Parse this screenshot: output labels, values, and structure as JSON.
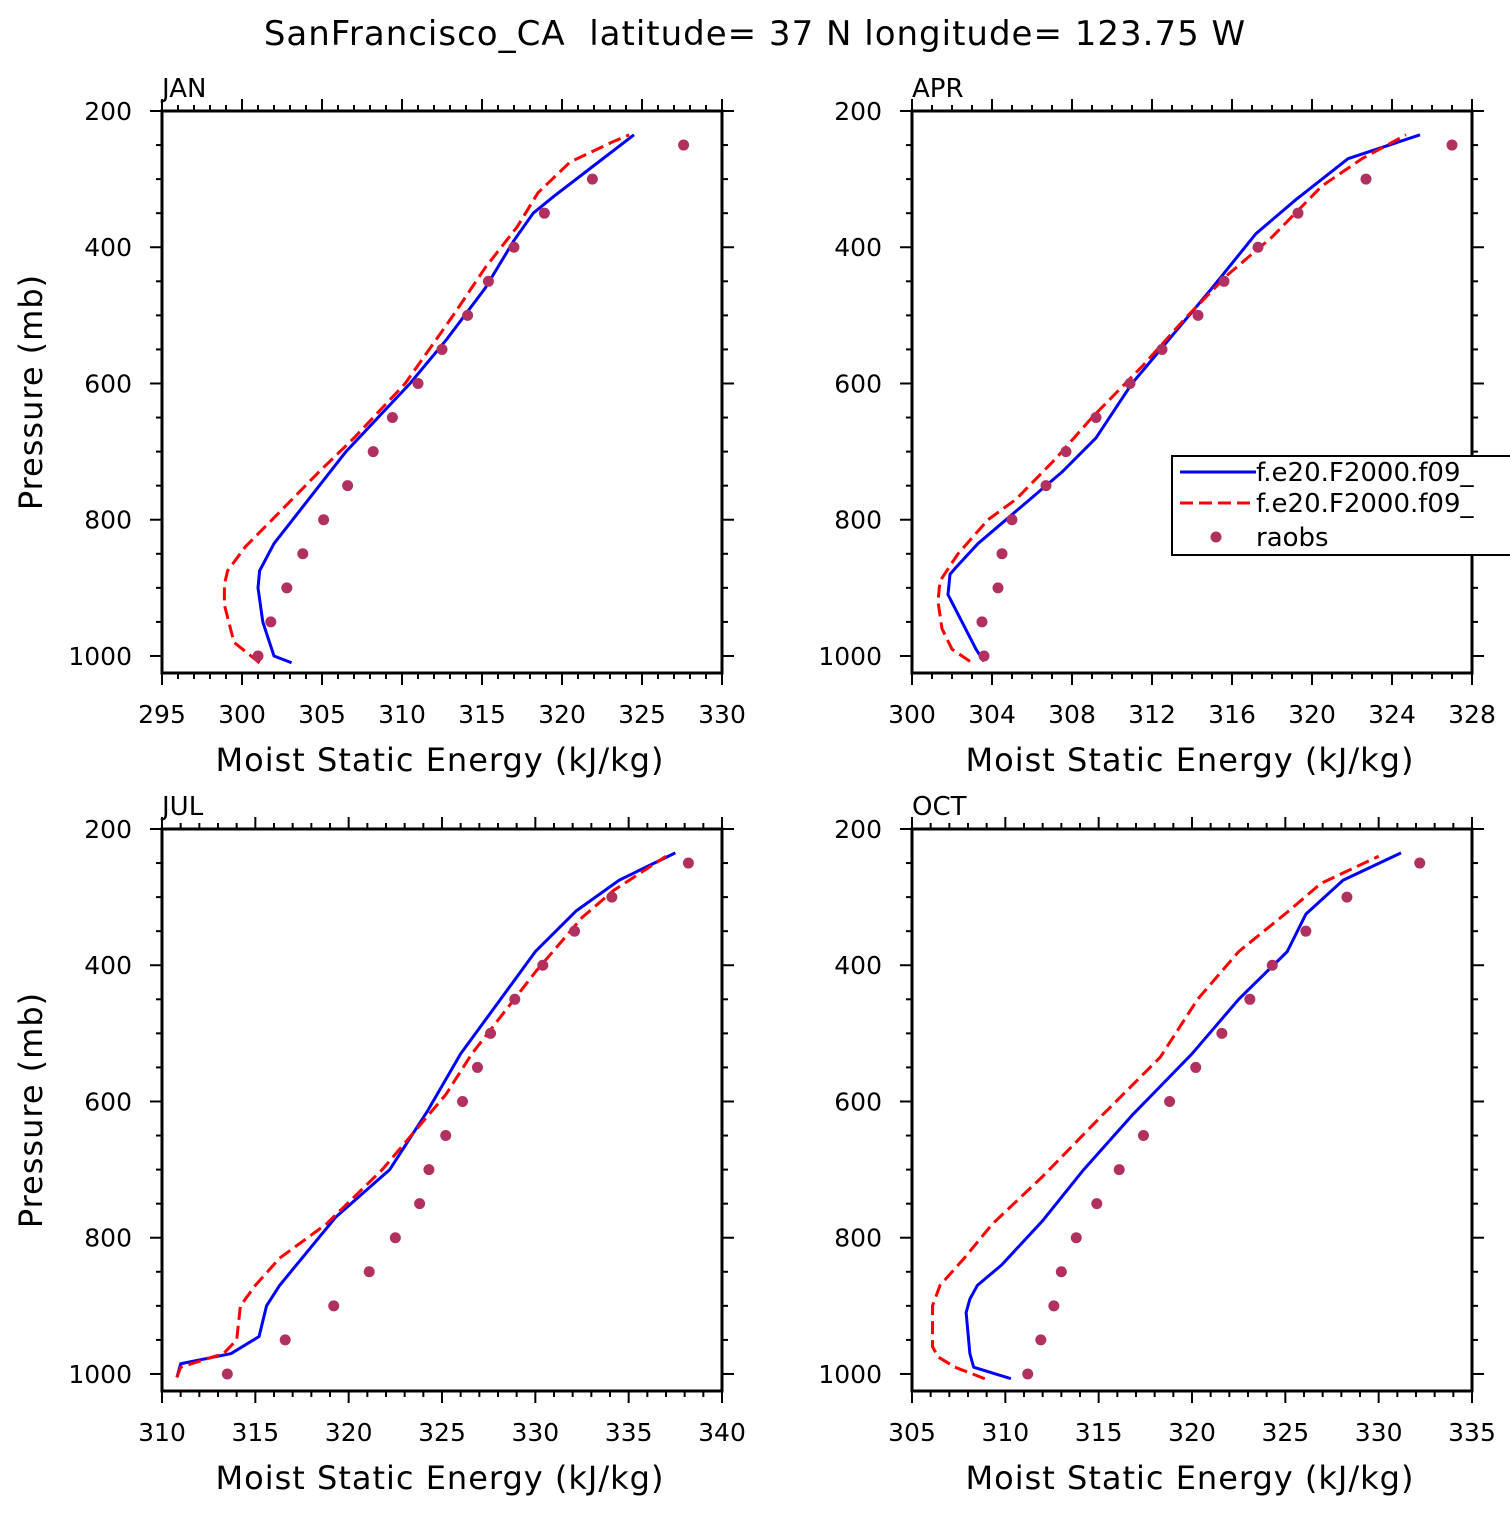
{
  "title": "SanFrancisco_CA  latitude= 37 N longitude= 123.75 W",
  "colors": {
    "blue": "#0000ff",
    "red": "#ff0000",
    "raobs": "#b03060",
    "axis": "#000000"
  },
  "legend": {
    "entries": [
      "f.e20.F2000.f09_",
      "f.e20.F2000.f09_",
      "raobs"
    ]
  },
  "chart_data": [
    {
      "type": "line",
      "panel": "JAN",
      "xlabel": "Moist Static Energy (kJ/kg)",
      "ylabel": "Pressure (mb)",
      "xlim": [
        295,
        330
      ],
      "ylim": [
        1000,
        200
      ],
      "xticks": [
        295,
        300,
        305,
        310,
        315,
        320,
        325,
        330
      ],
      "yticks": [
        200,
        400,
        600,
        800,
        1000
      ],
      "x_minor": 1,
      "y_minor": 50,
      "grid": false,
      "series": [
        {
          "style": "solid",
          "color": "blue",
          "points": [
            [
              303.1,
              1010
            ],
            [
              302,
              1000
            ],
            [
              301.3,
              950
            ],
            [
              301,
              900
            ],
            [
              301.1,
              875
            ],
            [
              302,
              835
            ],
            [
              304,
              775
            ],
            [
              306.5,
              700
            ],
            [
              308.5,
              650
            ],
            [
              310.5,
              600
            ],
            [
              312.8,
              535
            ],
            [
              315.2,
              460
            ],
            [
              317,
              390
            ],
            [
              318.2,
              350
            ],
            [
              319.5,
              325
            ],
            [
              322,
              280
            ],
            [
              324.5,
              235
            ]
          ]
        },
        {
          "style": "dashed",
          "color": "red",
          "points": [
            [
              301.1,
              1010
            ],
            [
              299.5,
              980
            ],
            [
              298.9,
              925
            ],
            [
              298.9,
              895
            ],
            [
              299.1,
              875
            ],
            [
              300.2,
              840
            ],
            [
              302.3,
              790
            ],
            [
              304.8,
              730
            ],
            [
              307,
              680
            ],
            [
              310.2,
              600
            ],
            [
              313.2,
              500
            ],
            [
              315.2,
              430
            ],
            [
              317.2,
              370
            ],
            [
              318.5,
              320
            ],
            [
              320.5,
              275
            ],
            [
              323.2,
              245
            ],
            [
              324.2,
              235
            ]
          ]
        }
      ],
      "raobs": [
        [
          327.6,
          250
        ],
        [
          321.9,
          300
        ],
        [
          318.9,
          350
        ],
        [
          317,
          400
        ],
        [
          315.4,
          450
        ],
        [
          314.1,
          500
        ],
        [
          312.5,
          550
        ],
        [
          311,
          600
        ],
        [
          309.4,
          650
        ],
        [
          308.2,
          700
        ],
        [
          306.6,
          750
        ],
        [
          305.1,
          800
        ],
        [
          303.8,
          850
        ],
        [
          302.8,
          900
        ],
        [
          301.8,
          950
        ],
        [
          301,
          1000
        ]
      ]
    },
    {
      "type": "line",
      "panel": "APR",
      "xlabel": "Moist Static Energy (kJ/kg)",
      "ylabel": "",
      "xlim": [
        300,
        328
      ],
      "ylim": [
        1000,
        200
      ],
      "xticks": [
        300,
        304,
        308,
        312,
        316,
        320,
        324,
        328
      ],
      "yticks": [
        200,
        400,
        600,
        800,
        1000
      ],
      "x_minor": 1,
      "y_minor": 50,
      "grid": false,
      "series": [
        {
          "style": "solid",
          "color": "blue",
          "points": [
            [
              303.6,
              1008
            ],
            [
              303.2,
              990
            ],
            [
              302.5,
              950
            ],
            [
              301.8,
              910
            ],
            [
              301.9,
              880
            ],
            [
              302.2,
              870
            ],
            [
              303.3,
              835
            ],
            [
              305.5,
              780
            ],
            [
              307.5,
              730
            ],
            [
              309.2,
              680
            ],
            [
              311,
              600
            ],
            [
              313,
              530
            ],
            [
              315,
              460
            ],
            [
              317.2,
              380
            ],
            [
              319.2,
              330
            ],
            [
              321.8,
              270
            ],
            [
              325.4,
              235
            ]
          ]
        },
        {
          "style": "dashed",
          "color": "red",
          "points": [
            [
              302.9,
              1008
            ],
            [
              302,
              990
            ],
            [
              301.5,
              960
            ],
            [
              301.3,
              920
            ],
            [
              301.4,
              890
            ],
            [
              302.3,
              850
            ],
            [
              303.8,
              800
            ],
            [
              305.2,
              770
            ],
            [
              307.2,
              710
            ],
            [
              309,
              650
            ],
            [
              311.5,
              575
            ],
            [
              313.8,
              500
            ],
            [
              315.8,
              440
            ],
            [
              318,
              385
            ],
            [
              320.5,
              310
            ],
            [
              322.5,
              270
            ],
            [
              324.7,
              235
            ]
          ]
        }
      ],
      "raobs": [
        [
          327,
          250
        ],
        [
          322.7,
          300
        ],
        [
          319.3,
          350
        ],
        [
          317.3,
          400
        ],
        [
          315.6,
          450
        ],
        [
          314.3,
          500
        ],
        [
          312.5,
          550
        ],
        [
          310.9,
          600
        ],
        [
          309.2,
          650
        ],
        [
          307.7,
          700
        ],
        [
          306.7,
          750
        ],
        [
          305,
          800
        ],
        [
          304.5,
          850
        ],
        [
          304.3,
          900
        ],
        [
          303.5,
          950
        ],
        [
          303.6,
          1000
        ]
      ]
    },
    {
      "type": "line",
      "panel": "JUL",
      "xlabel": "Moist Static Energy (kJ/kg)",
      "ylabel": "Pressure (mb)",
      "xlim": [
        310,
        340
      ],
      "ylim": [
        1000,
        200
      ],
      "xticks": [
        310,
        315,
        320,
        325,
        330,
        335,
        340
      ],
      "yticks": [
        200,
        400,
        600,
        800,
        1000
      ],
      "x_minor": 1,
      "y_minor": 50,
      "grid": false,
      "series": [
        {
          "style": "solid",
          "color": "blue",
          "points": [
            [
              310.8,
              1005
            ],
            [
              311,
              985
            ],
            [
              313.7,
              970
            ],
            [
              315.2,
              945
            ],
            [
              315.6,
              900
            ],
            [
              316.3,
              870
            ],
            [
              319.3,
              770
            ],
            [
              322.2,
              700
            ],
            [
              324.2,
              615
            ],
            [
              326,
              530
            ],
            [
              330,
              380
            ],
            [
              332.2,
              320
            ],
            [
              334.5,
              275
            ],
            [
              337.5,
              235
            ]
          ]
        },
        {
          "style": "dashed",
          "color": "red",
          "points": [
            [
              310.8,
              1005
            ],
            [
              311,
              990
            ],
            [
              313.3,
              970
            ],
            [
              314,
              950
            ],
            [
              314.2,
              900
            ],
            [
              315,
              870
            ],
            [
              316.3,
              830
            ],
            [
              318.8,
              780
            ],
            [
              321.8,
              700
            ],
            [
              325.2,
              590
            ],
            [
              326.6,
              530
            ],
            [
              328.3,
              470
            ],
            [
              330,
              410
            ],
            [
              332.5,
              330
            ],
            [
              334.2,
              290
            ],
            [
              337,
              240
            ]
          ]
        }
      ],
      "raobs": [
        [
          338.2,
          250
        ],
        [
          334.1,
          300
        ],
        [
          332.1,
          350
        ],
        [
          330.4,
          400
        ],
        [
          328.9,
          450
        ],
        [
          327.6,
          500
        ],
        [
          326.9,
          550
        ],
        [
          326.1,
          600
        ],
        [
          325.2,
          650
        ],
        [
          324.3,
          700
        ],
        [
          323.8,
          750
        ],
        [
          322.5,
          800
        ],
        [
          321.1,
          850
        ],
        [
          319.2,
          900
        ],
        [
          316.6,
          950
        ],
        [
          313.5,
          1000
        ]
      ]
    },
    {
      "type": "line",
      "panel": "OCT",
      "xlabel": "Moist Static Energy (kJ/kg)",
      "ylabel": "",
      "xlim": [
        305,
        335
      ],
      "ylim": [
        1000,
        200
      ],
      "xticks": [
        305,
        310,
        315,
        320,
        325,
        330,
        335
      ],
      "yticks": [
        200,
        400,
        600,
        800,
        1000
      ],
      "x_minor": 1,
      "y_minor": 50,
      "grid": false,
      "series": [
        {
          "style": "solid",
          "color": "blue",
          "points": [
            [
              310.3,
              1007
            ],
            [
              308.3,
              990
            ],
            [
              308.1,
              970
            ],
            [
              308,
              940
            ],
            [
              307.9,
              910
            ],
            [
              308.1,
              890
            ],
            [
              308.5,
              870
            ],
            [
              309.8,
              840
            ],
            [
              312,
              775
            ],
            [
              314.2,
              700
            ],
            [
              316.8,
              620
            ],
            [
              320,
              530
            ],
            [
              322.5,
              450
            ],
            [
              325.1,
              380
            ],
            [
              326.1,
              325
            ],
            [
              328.1,
              275
            ],
            [
              331.2,
              235
            ]
          ]
        },
        {
          "style": "dashed",
          "color": "red",
          "points": [
            [
              308.9,
              1007
            ],
            [
              307.3,
              990
            ],
            [
              306.4,
              975
            ],
            [
              306.1,
              960
            ],
            [
              306.1,
              900
            ],
            [
              306.5,
              870
            ],
            [
              307.8,
              830
            ],
            [
              309.3,
              780
            ],
            [
              312,
              710
            ],
            [
              315.2,
              620
            ],
            [
              318.3,
              535
            ],
            [
              320.3,
              450
            ],
            [
              322.5,
              380
            ],
            [
              325.2,
              320
            ],
            [
              326.9,
              280
            ],
            [
              330,
              240
            ]
          ]
        }
      ],
      "raobs": [
        [
          332.2,
          250
        ],
        [
          328.3,
          300
        ],
        [
          326.1,
          350
        ],
        [
          324.3,
          400
        ],
        [
          323.1,
          450
        ],
        [
          321.6,
          500
        ],
        [
          320.2,
          550
        ],
        [
          318.8,
          600
        ],
        [
          317.4,
          650
        ],
        [
          316.1,
          700
        ],
        [
          314.9,
          750
        ],
        [
          313.8,
          800
        ],
        [
          313,
          850
        ],
        [
          312.6,
          900
        ],
        [
          311.9,
          950
        ],
        [
          311.2,
          1000
        ]
      ]
    }
  ]
}
